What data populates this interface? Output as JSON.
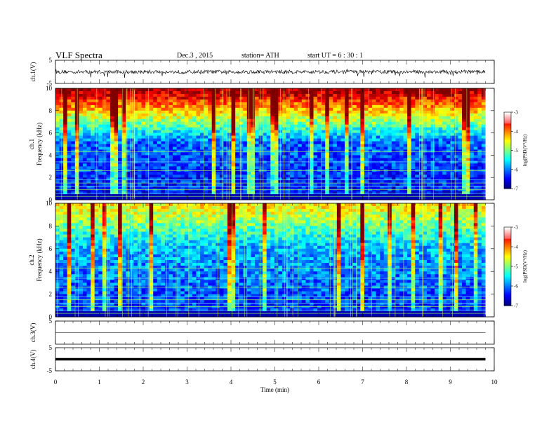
{
  "header": {
    "title": "VLF  Spectra",
    "date": "Dec.3  , 2015",
    "station": "station= ATH",
    "start": "start  UT  =    6  : 30 : 1"
  },
  "chart_data": [
    {
      "type": "line",
      "ylabel": "ch.1(V)",
      "ylim": [
        -5,
        5
      ],
      "yticks": [
        "5",
        "-5"
      ],
      "xlim": [
        0,
        10
      ],
      "trace": "noisy",
      "series_color": "#000000"
    },
    {
      "type": "heatmap",
      "ylabel": "ch.1  Frequency  (kHz)",
      "ylim": [
        0,
        10
      ],
      "yticks": [
        "0",
        "2",
        "4",
        "6",
        "8",
        "10"
      ],
      "xlim": [
        0,
        10
      ],
      "data_end_min": 9.8,
      "colorbar": {
        "label": "log(PSD(V²/Hz)",
        "range": [
          -7,
          -3
        ],
        "ticks": [
          "-3",
          "-4",
          "-5",
          "-6",
          "-7"
        ]
      }
    },
    {
      "type": "heatmap",
      "ylabel": "ch.2  Frequency  (kHz)",
      "ylim": [
        0,
        10
      ],
      "yticks": [
        "0",
        "2",
        "4",
        "6",
        "8",
        "10"
      ],
      "xlim": [
        0,
        10
      ],
      "data_end_min": 9.8,
      "colorbar": {
        "label": "log(PSD(V²/Hz)",
        "range": [
          -7,
          -3
        ],
        "ticks": [
          "-3",
          "-4",
          "-5",
          "-6",
          "-7"
        ]
      }
    },
    {
      "type": "line",
      "ylabel": "ch.3(V)",
      "ylim": [
        -5,
        5
      ],
      "yticks": [
        "5"
      ],
      "xlim": [
        0,
        10
      ],
      "trace": "flat",
      "series_color": "#000000"
    },
    {
      "type": "line",
      "ylabel": "ch.4(V)",
      "ylim": [
        -5,
        5
      ],
      "yticks": [
        "5",
        "-5"
      ],
      "xlim": [
        0,
        10
      ],
      "trace": "flat-thick",
      "series_color": "#000000"
    }
  ],
  "xaxis": {
    "label": "Time  (min)",
    "ticks": [
      "0",
      "1",
      "2",
      "3",
      "4",
      "5",
      "6",
      "7",
      "8",
      "9",
      "10"
    ]
  }
}
